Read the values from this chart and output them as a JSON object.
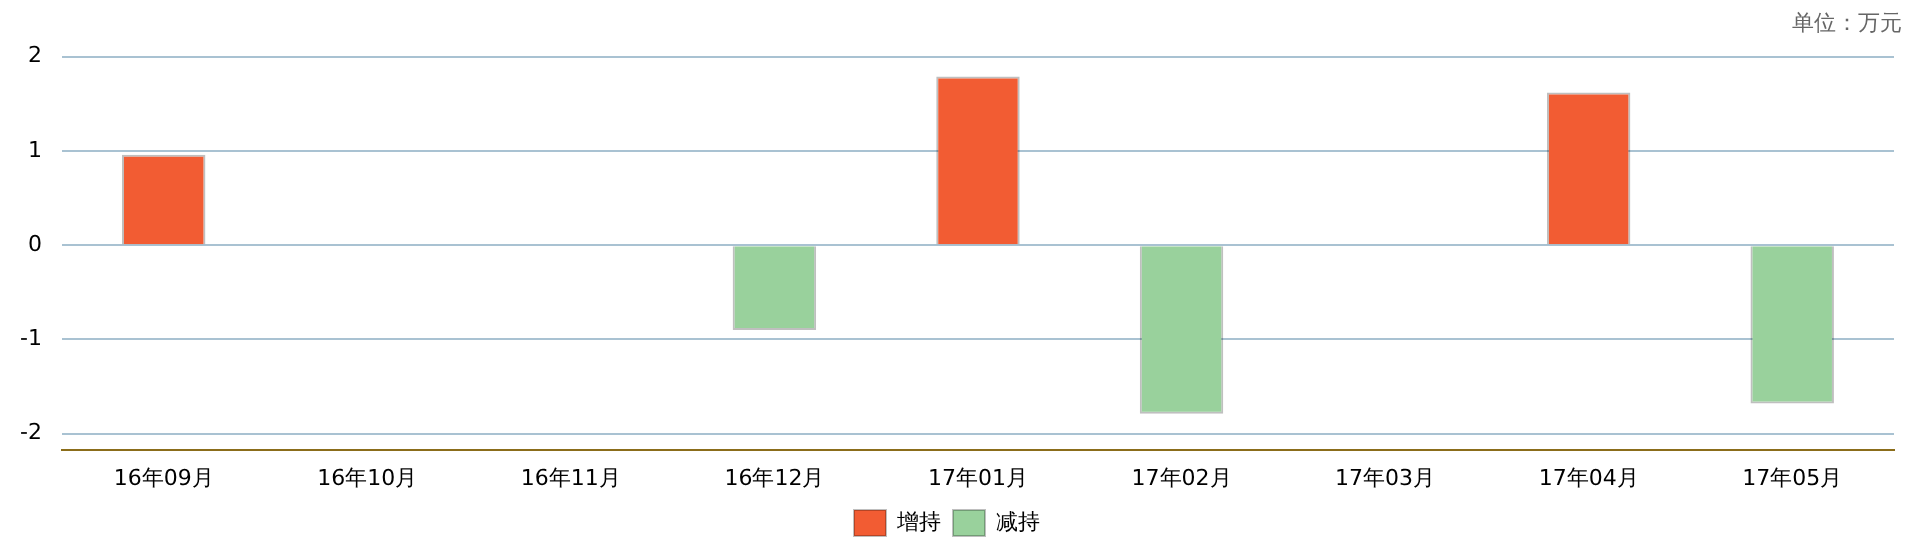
{
  "chart_data": {
    "type": "bar",
    "categories": [
      "16年09月",
      "16年10月",
      "16年11月",
      "16年12月",
      "17年01月",
      "17年02月",
      "17年03月",
      "17年04月",
      "17年05月"
    ],
    "series": [
      {
        "name": "增持",
        "color": "#f25c33",
        "values": [
          0.96,
          null,
          null,
          null,
          1.79,
          null,
          null,
          1.62,
          null
        ]
      },
      {
        "name": "减持",
        "color": "#99d19c",
        "values": [
          null,
          null,
          null,
          -0.9,
          null,
          -1.79,
          null,
          null,
          -1.68
        ]
      }
    ],
    "ylim": [
      -2.17,
      2.05
    ],
    "yticks": [
      -2,
      -1,
      0,
      1,
      2
    ],
    "grid": "y",
    "legend": "bottom",
    "annotations": [
      "单位：万元"
    ]
  }
}
